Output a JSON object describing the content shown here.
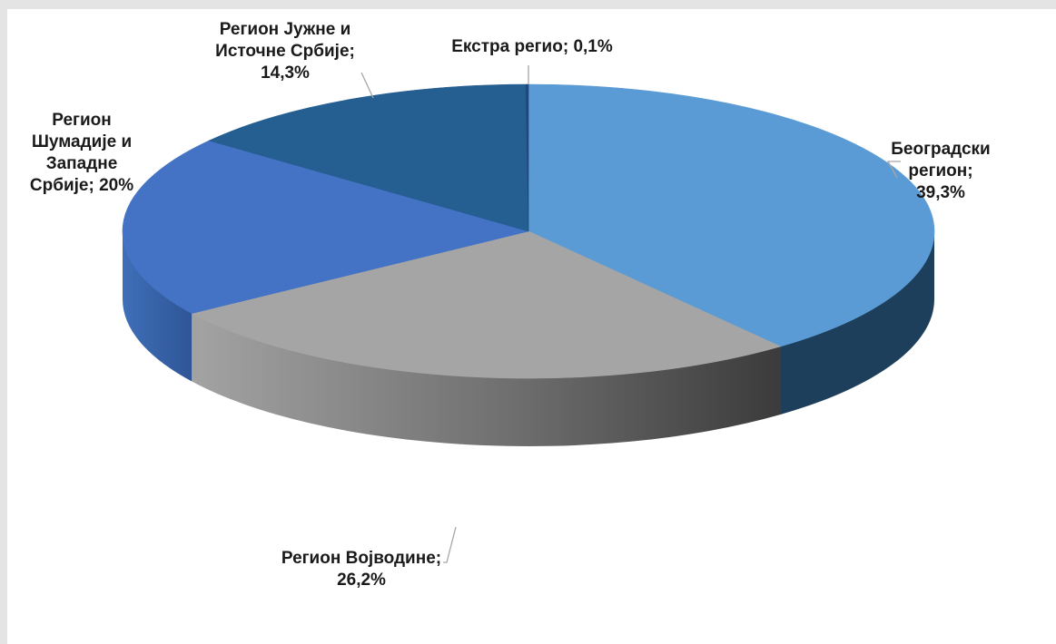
{
  "chart_data": {
    "type": "pie",
    "style": "3d",
    "legend": "none",
    "slices": [
      {
        "name": "Београдски регион",
        "value": 39.3,
        "label": [
          "Београдски",
          "регион;",
          "39,3%"
        ],
        "color": "#5b9bd5"
      },
      {
        "name": "Регион Војводине",
        "value": 26.2,
        "label": [
          "Регион Војводине;",
          "26,2%"
        ],
        "color": "#a5a5a5"
      },
      {
        "name": "Регион Шумадије и Западне Србије",
        "value": 20,
        "label": [
          "Регион",
          "Шумадије и",
          "Западне",
          "Србије; 20%"
        ],
        "color": "#4472c4"
      },
      {
        "name": "Регион Јужне и Источне Србије",
        "value": 14.3,
        "label": [
          "Регион Јужне и",
          "Источне Србије;",
          "14,3%"
        ],
        "color": "#255e91"
      },
      {
        "name": "Екстра регио",
        "value": 0.1,
        "label": [
          "Екстра регио; 0,1%"
        ],
        "color": "#264478"
      }
    ]
  }
}
